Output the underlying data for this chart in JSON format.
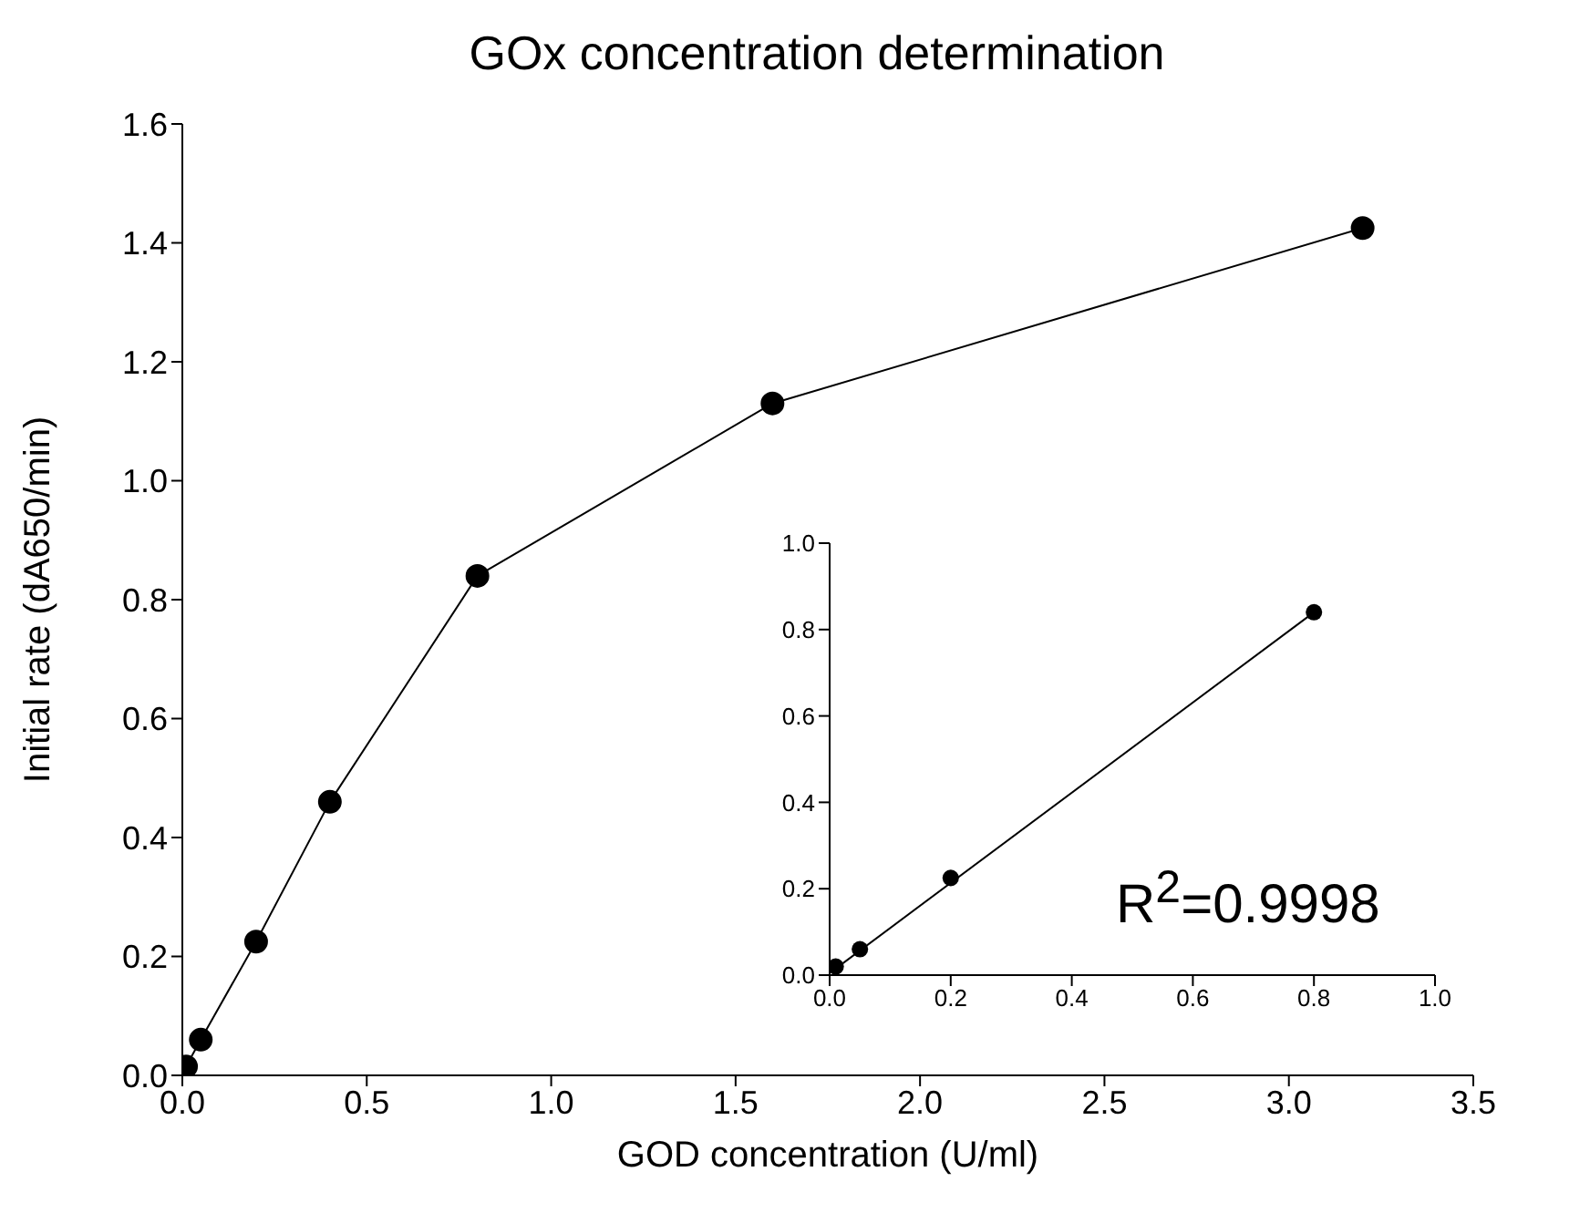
{
  "chart_data": [
    {
      "type": "line",
      "title": "GOx concentration determination",
      "xlabel": "GOD concentration (U/ml)",
      "ylabel": "Initial rate (dA650/min)",
      "marker": "circle",
      "line_style": "solid",
      "series": [
        {
          "color": "#000000",
          "x": [
            0.01,
            0.05,
            0.2,
            0.4,
            0.8,
            1.6,
            3.2
          ],
          "values": [
            0.015,
            0.06,
            0.225,
            0.46,
            0.84,
            1.13,
            1.425
          ]
        }
      ],
      "xlim": [
        0,
        3.5
      ],
      "xticks": [
        {
          "value": 0,
          "label": "0.0"
        },
        {
          "value": 0.5,
          "label": "0.5"
        },
        {
          "value": 1,
          "label": "1.0"
        },
        {
          "value": 1.5,
          "label": "1.5"
        },
        {
          "value": 2,
          "label": "2.0"
        },
        {
          "value": 2.5,
          "label": "2.5"
        },
        {
          "value": 3,
          "label": "3.0"
        },
        {
          "value": 3.5,
          "label": "3.5"
        }
      ],
      "ylim": [
        0,
        1.6
      ],
      "yticks": [
        {
          "value": 0,
          "label": "0.0"
        },
        {
          "value": 0.2,
          "label": "0.2"
        },
        {
          "value": 0.4,
          "label": "0.4"
        },
        {
          "value": 0.6,
          "label": "0.6"
        },
        {
          "value": 0.8,
          "label": "0.8"
        },
        {
          "value": 1,
          "label": "1.0"
        },
        {
          "value": 1.2,
          "label": "1.2"
        },
        {
          "value": 1.4,
          "label": "1.4"
        },
        {
          "value": 1.6,
          "label": "1.6"
        }
      ]
    },
    {
      "type": "scatter",
      "annotations": [
        "R$^{2}$=0.9998"
      ],
      "marker": "circle",
      "series": [
        {
          "color": "#000000",
          "x": [
            0.01,
            0.05,
            0.2,
            0.8
          ],
          "values": [
            0.02,
            0.06,
            0.225,
            0.84
          ]
        },
        {
          "type": "line",
          "marker": "none",
          "color": "#000000",
          "x": [
            0.01,
            0.8
          ],
          "values": [
            0.015,
            0.84
          ]
        }
      ],
      "xlim": [
        0,
        1
      ],
      "xticks": [
        {
          "value": 0,
          "label": "0.0"
        },
        {
          "value": 0.2,
          "label": "0.2"
        },
        {
          "value": 0.4,
          "label": "0.4"
        },
        {
          "value": 0.6,
          "label": "0.6"
        },
        {
          "value": 0.8,
          "label": "0.8"
        },
        {
          "value": 1,
          "label": "1.0"
        }
      ],
      "ylim": [
        0,
        1
      ],
      "yticks": [
        {
          "value": 0,
          "label": "0.0"
        },
        {
          "value": 0.2,
          "label": "0.2"
        },
        {
          "value": 0.4,
          "label": "0.4"
        },
        {
          "value": 0.6,
          "label": "0.6"
        },
        {
          "value": 0.8,
          "label": "0.8"
        },
        {
          "value": 1,
          "label": "1.0"
        }
      ]
    }
  ]
}
